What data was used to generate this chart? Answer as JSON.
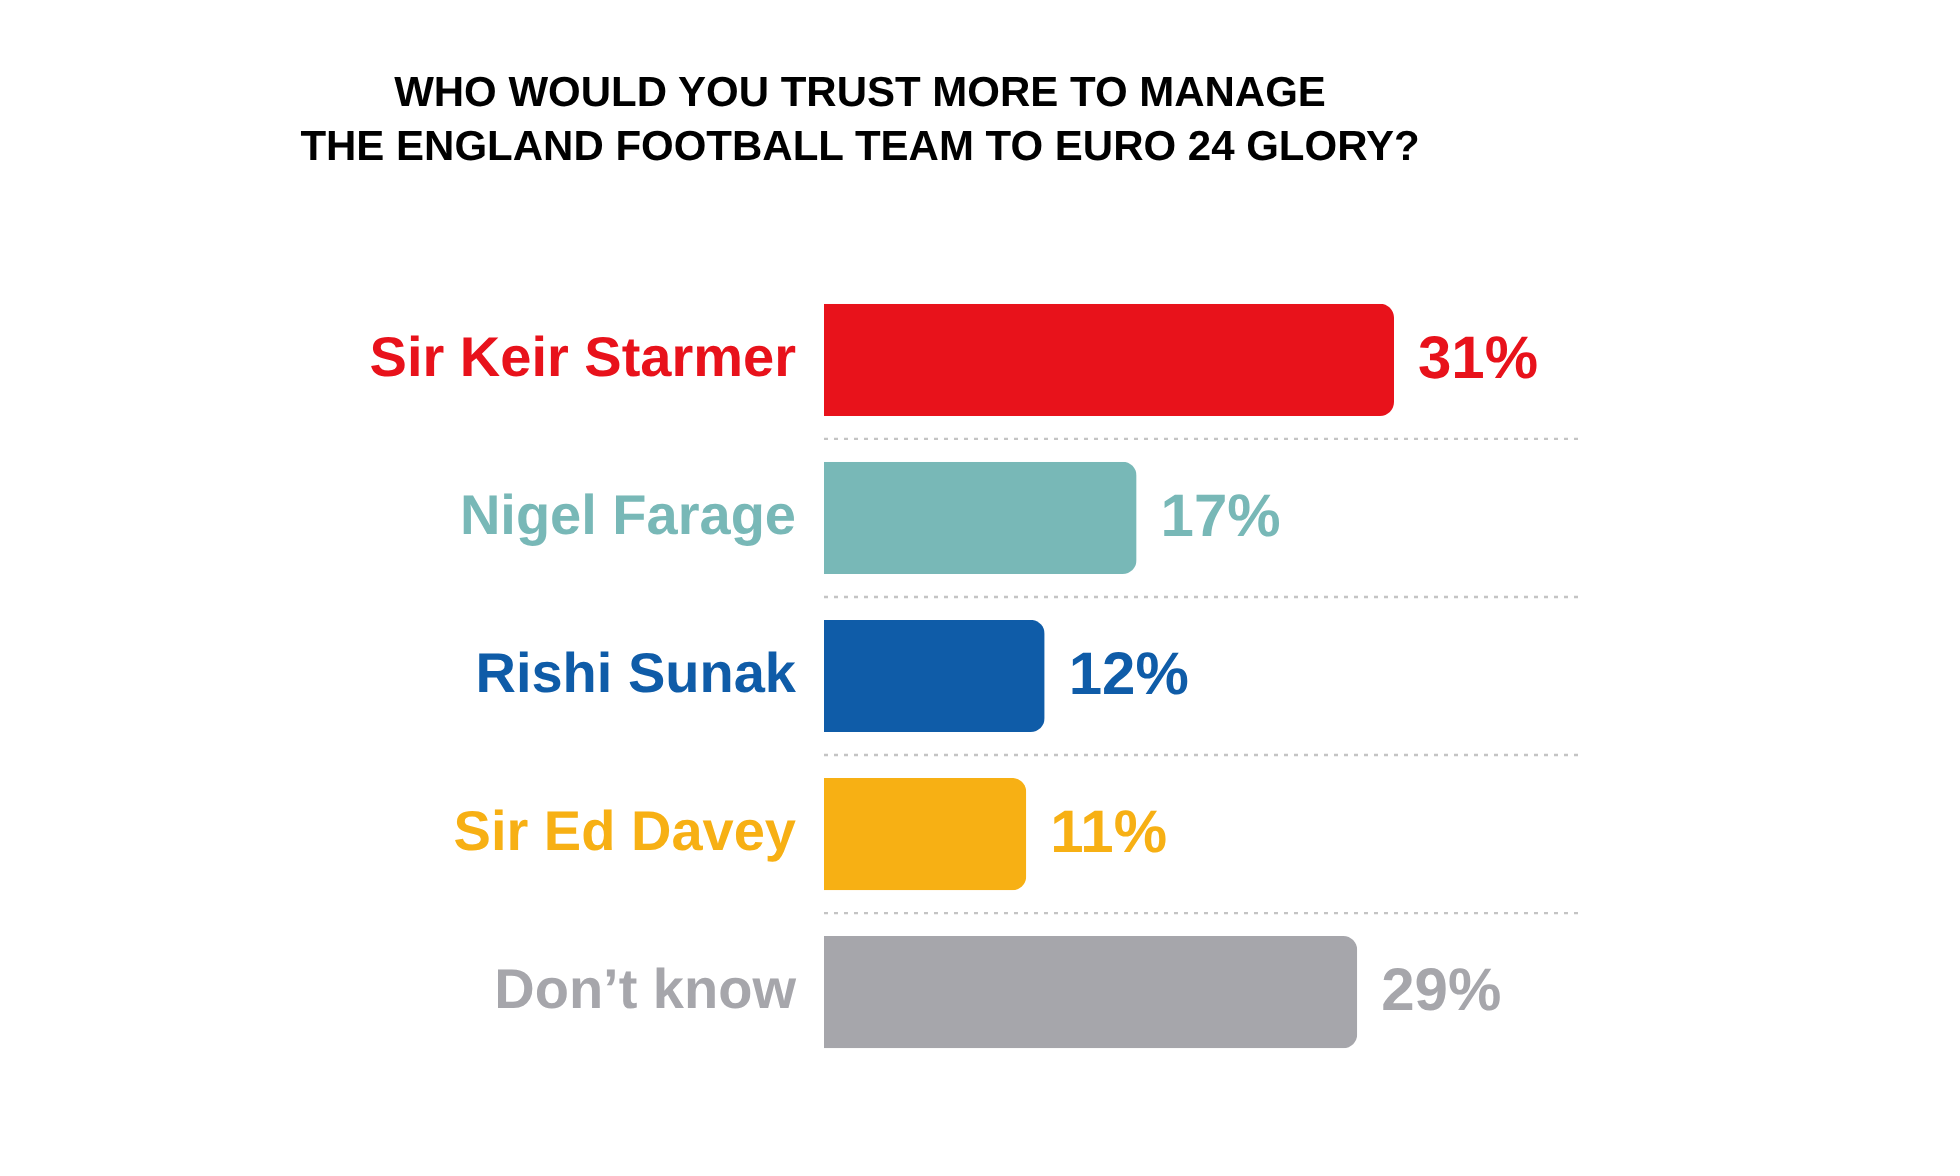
{
  "chart_data": {
    "type": "bar",
    "orientation": "horizontal",
    "title": "WHO WOULD YOU TRUST MORE TO MANAGE\nTHE ENGLAND FOOTBALL TEAM TO EURO 24 GLORY?",
    "categories": [
      "Sir Keir Starmer",
      "Nigel Farage",
      "Rishi Sunak",
      "Sir Ed Davey",
      "Don’t know"
    ],
    "values": [
      31,
      17,
      12,
      11,
      29
    ],
    "value_labels": [
      "31%",
      "17%",
      "12%",
      "11%",
      "29%"
    ],
    "colors": [
      "#e8121b",
      "#78b8b7",
      "#0f5ca8",
      "#f7b014",
      "#a6a6ab"
    ],
    "grid": "y",
    "tick_labels": "y"
  }
}
